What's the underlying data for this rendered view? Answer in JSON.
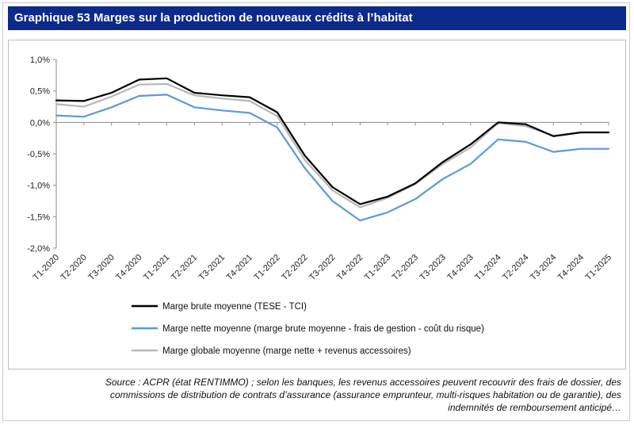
{
  "header": {
    "title": "Graphique 53 Marges sur la production de nouveaux crédits à l’habitat"
  },
  "source": {
    "lines": [
      "Source : ACPR (état RENTIMMO) ; selon les banques, les revenus accessoires peuvent recouvrir des frais de dossier, des",
      "commissions de distribution de contrats d’assurance (assurance emprunteur, multi-risques habitation ou de garantie), des",
      "indemnités de remboursement anticipé…"
    ]
  },
  "chart_data": {
    "type": "line",
    "title": "",
    "xlabel": "",
    "ylabel": "",
    "ylim": [
      -2.0,
      1.0
    ],
    "y_ticks": [
      1.0,
      0.5,
      0.0,
      -0.5,
      -1.0,
      -1.5,
      -2.0
    ],
    "y_tick_labels": [
      "1,0%",
      "0,5%",
      "0,0%",
      "-0,5%",
      "-1,0%",
      "-1,5%",
      "-2,0%"
    ],
    "categories": [
      "T1-2020",
      "T2-2020",
      "T3-2020",
      "T4-2020",
      "T1-2021",
      "T2-2021",
      "T3-2021",
      "T4-2021",
      "T1-2022",
      "T2-2022",
      "T3-2022",
      "T4-2022",
      "T1-2023",
      "T2-2023",
      "T3-2023",
      "T4-2023",
      "T1-2024",
      "T2-2024",
      "T3-2024",
      "T4-2024",
      "T1-2025"
    ],
    "grid": false,
    "legend_position": "bottom",
    "series": [
      {
        "name": "Marge brute moyenne (TESE - TCI)",
        "color": "#000000",
        "values": [
          0.35,
          0.34,
          0.47,
          0.68,
          0.7,
          0.47,
          0.43,
          0.4,
          0.16,
          -0.53,
          -1.03,
          -1.3,
          -1.18,
          -0.97,
          -0.63,
          -0.35,
          0.0,
          -0.03,
          -0.22,
          -0.16,
          -0.16
        ]
      },
      {
        "name": "Marge nette moyenne (marge brute moyenne - frais de gestion - coût du risque)",
        "color": "#5b9bd5",
        "values": [
          0.11,
          0.09,
          0.24,
          0.42,
          0.44,
          0.24,
          0.19,
          0.15,
          -0.08,
          -0.73,
          -1.25,
          -1.56,
          -1.43,
          -1.22,
          -0.9,
          -0.66,
          -0.27,
          -0.31,
          -0.47,
          -0.42,
          -0.42
        ]
      },
      {
        "name": "Marge globale moyenne (marge nette + revenus accessoires)",
        "color": "#b7b7b7",
        "values": [
          0.29,
          0.25,
          0.41,
          0.6,
          0.61,
          0.43,
          0.38,
          0.34,
          0.1,
          -0.6,
          -1.08,
          -1.35,
          -1.2,
          -0.98,
          -0.66,
          -0.4,
          -0.01,
          -0.06,
          -0.21,
          -0.16,
          -0.16
        ]
      }
    ]
  }
}
